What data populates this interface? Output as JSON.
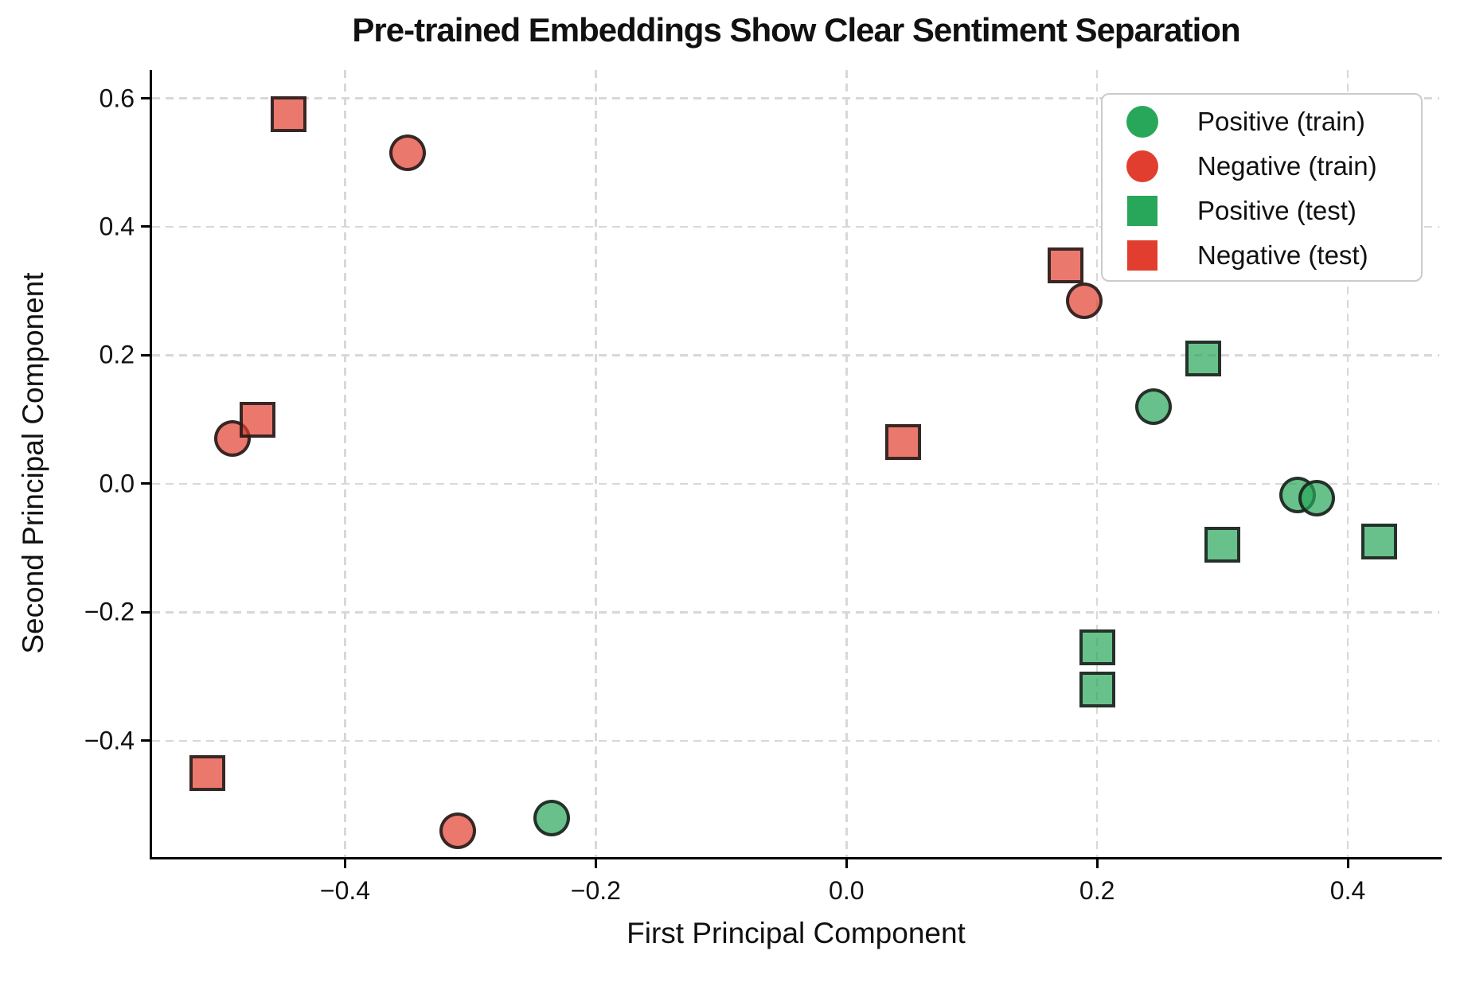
{
  "chart_data": {
    "type": "scatter",
    "title": "Pre-trained Embeddings Show Clear Sentiment Separation",
    "xlabel": "First Principal Component",
    "ylabel": "Second Principal Component",
    "xlim": [
      -0.554,
      0.473
    ],
    "ylim": [
      -0.581,
      0.644
    ],
    "grid": true,
    "grid_style": "dashed",
    "legend_position": "upper right",
    "xticks": [
      -0.4,
      -0.2,
      0.0,
      0.2,
      0.4
    ],
    "xtick_labels": [
      "−0.4",
      "−0.2",
      "0.0",
      "0.2",
      "0.4"
    ],
    "yticks": [
      -0.4,
      -0.2,
      0.0,
      0.2,
      0.4,
      0.6
    ],
    "ytick_labels": [
      "−0.4",
      "−0.2",
      "0.0",
      "0.2",
      "0.4",
      "0.6"
    ],
    "colors": {
      "positive": "#28a75a",
      "negative": "#e23e2f",
      "marker_edge": "#1a1a1a",
      "grid": "#d8d8d8"
    },
    "series": [
      {
        "name": "Positive (train)",
        "marker": "circle",
        "color": "#28a75a",
        "points": [
          [
            0.245,
            0.12
          ],
          [
            0.36,
            -0.017
          ],
          [
            0.375,
            -0.022
          ],
          [
            -0.235,
            -0.52
          ]
        ]
      },
      {
        "name": "Negative (train)",
        "marker": "circle",
        "color": "#e23e2f",
        "points": [
          [
            -0.35,
            0.515
          ],
          [
            -0.49,
            0.07
          ],
          [
            0.19,
            0.285
          ],
          [
            -0.31,
            -0.54
          ]
        ]
      },
      {
        "name": "Positive (test)",
        "marker": "square",
        "color": "#28a75a",
        "points": [
          [
            0.285,
            0.195
          ],
          [
            0.3,
            -0.095
          ],
          [
            0.425,
            -0.09
          ],
          [
            0.2,
            -0.255
          ],
          [
            0.2,
            -0.32
          ]
        ]
      },
      {
        "name": "Negative (test)",
        "marker": "square",
        "color": "#e23e2f",
        "points": [
          [
            -0.445,
            0.575
          ],
          [
            -0.47,
            0.1
          ],
          [
            0.175,
            0.34
          ],
          [
            0.045,
            0.065
          ],
          [
            -0.51,
            -0.45
          ]
        ]
      }
    ]
  }
}
